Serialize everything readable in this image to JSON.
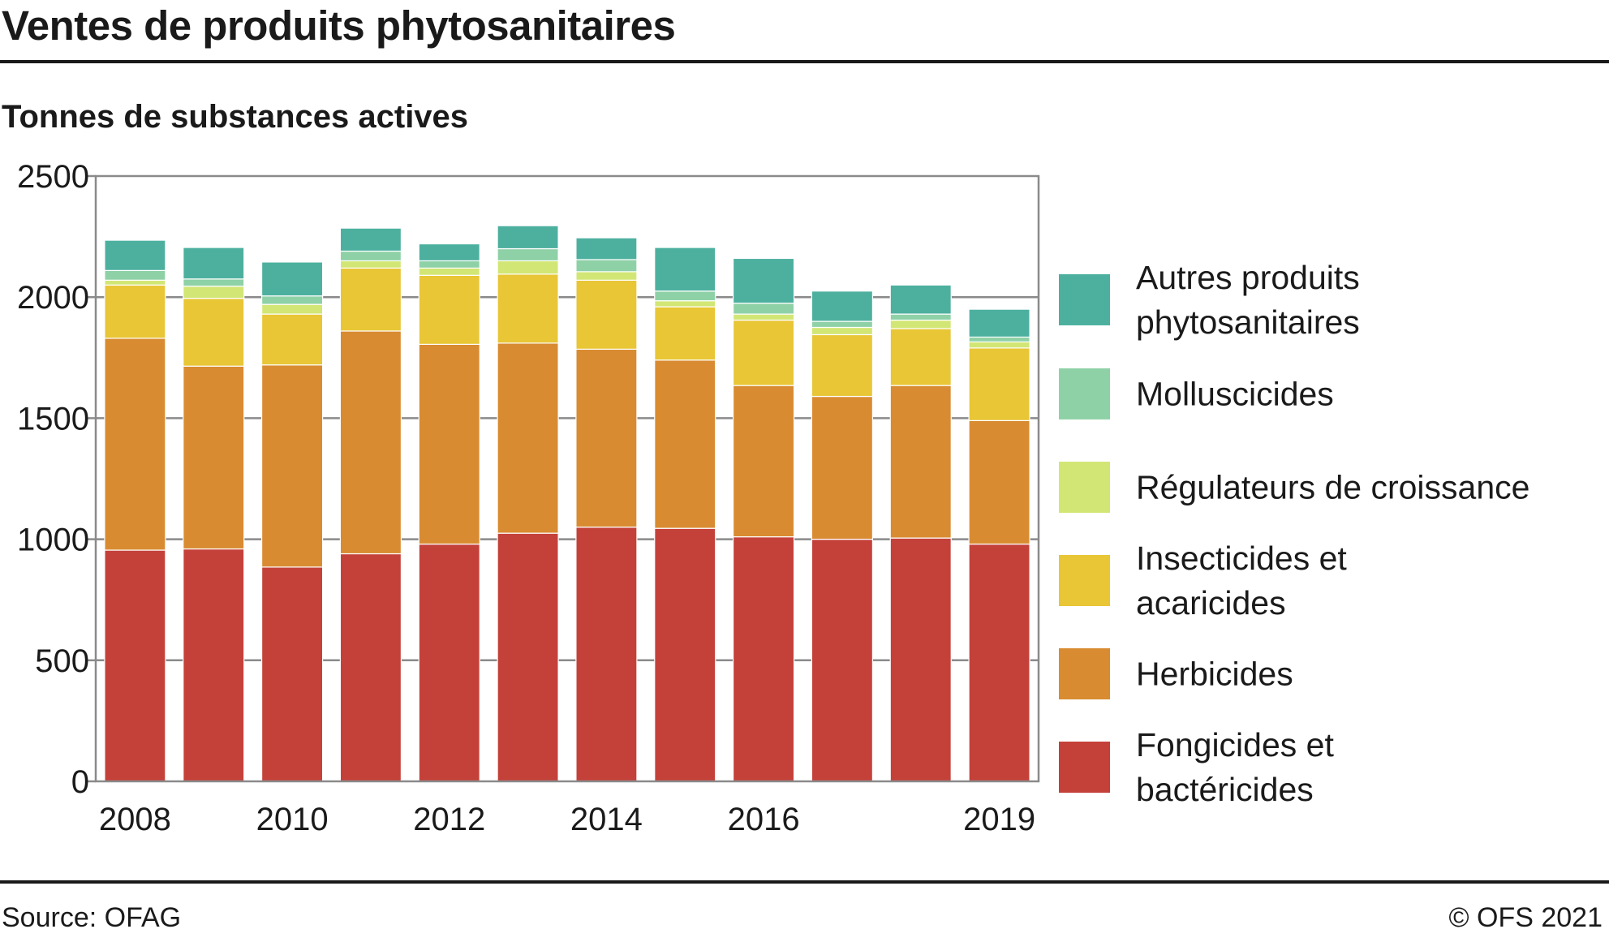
{
  "title": "Ventes de produits phytosanitaires",
  "source": "Source: OFAG",
  "copyright": "© OFS 2021",
  "chart_data": {
    "type": "bar",
    "stacked": true,
    "title": "Ventes de produits phytosanitaires",
    "subtitle": "Tonnes de substances actives",
    "xlabel": "",
    "ylabel": "",
    "ylim": [
      0,
      2500
    ],
    "y_ticks": [
      0,
      500,
      1000,
      1500,
      2000,
      2500
    ],
    "grid": true,
    "legend_position": "right",
    "categories": [
      "2008",
      "2009",
      "2010",
      "2011",
      "2012",
      "2013",
      "2014",
      "2015",
      "2016",
      "2017",
      "2018",
      "2019"
    ],
    "x_tick_labels": [
      "2008",
      "",
      "2010",
      "",
      "2012",
      "",
      "2014",
      "",
      "2016",
      "",
      "",
      "2019"
    ],
    "series": [
      {
        "name": "Fongicides et bactéricides",
        "color": "#c4413a",
        "values": [
          955,
          960,
          885,
          940,
          980,
          1025,
          1050,
          1045,
          1010,
          1000,
          1005,
          980
        ]
      },
      {
        "name": "Herbicides",
        "color": "#d98b31",
        "values": [
          875,
          755,
          835,
          920,
          825,
          785,
          735,
          695,
          625,
          590,
          630,
          510
        ]
      },
      {
        "name": "Insecticides et acaricides",
        "color": "#e8c636",
        "values": [
          220,
          280,
          210,
          260,
          285,
          285,
          285,
          220,
          270,
          255,
          235,
          300
        ]
      },
      {
        "name": "Régulateurs de croissance",
        "color": "#d2e675",
        "values": [
          20,
          50,
          40,
          30,
          30,
          55,
          35,
          25,
          25,
          30,
          35,
          25
        ]
      },
      {
        "name": "Molluscicides",
        "color": "#8fd1a7",
        "values": [
          40,
          30,
          35,
          40,
          30,
          50,
          50,
          40,
          45,
          25,
          25,
          20
        ]
      },
      {
        "name": "Autres produits phytosanitaires",
        "color": "#4db09f",
        "values": [
          125,
          130,
          140,
          95,
          70,
          95,
          90,
          180,
          185,
          125,
          120,
          115
        ]
      }
    ],
    "legend_order": [
      "Autres produits phytosanitaires",
      "Molluscicides",
      "Régulateurs de croissance",
      "Insecticides et acaricides",
      "Herbicides",
      "Fongicides et bactéricides"
    ]
  }
}
